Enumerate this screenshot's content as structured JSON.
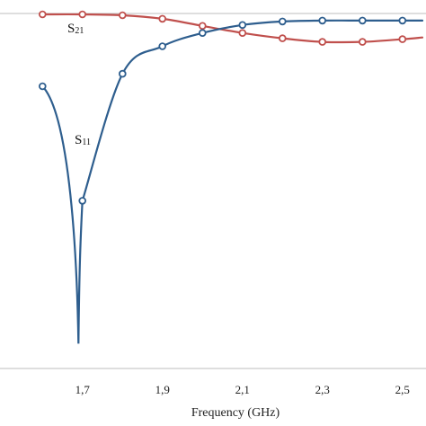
{
  "chart_data": {
    "type": "line",
    "xlabel": "Frequency (GHz)",
    "x_ticks": [
      "1,7",
      "1,9",
      "2,1",
      "2,3",
      "2,5"
    ],
    "x_tick_values": [
      1.7,
      1.9,
      2.1,
      2.3,
      2.5
    ],
    "xlim": [
      1.55,
      2.55
    ],
    "ylim": [
      -40,
      0
    ],
    "grid": false,
    "series": [
      {
        "name": "S21",
        "label_main": "S",
        "label_sub": "21",
        "color": "#c0504d",
        "x": [
          1.6,
          1.7,
          1.8,
          1.9,
          2.0,
          2.1,
          2.2,
          2.3,
          2.4,
          2.5,
          2.55
        ],
        "y": [
          -0.1,
          -0.1,
          -0.2,
          -0.6,
          -1.4,
          -2.2,
          -2.8,
          -3.2,
          -3.2,
          -2.9,
          -2.7
        ]
      },
      {
        "name": "S11",
        "label_main": "S",
        "label_sub": "11",
        "color": "#2e5e8e",
        "x": [
          1.6,
          1.7,
          1.8,
          1.9,
          2.0,
          2.1,
          2.2,
          2.3,
          2.4,
          2.5,
          2.55
        ],
        "y": [
          -8.2,
          -21.1,
          -6.8,
          -3.7,
          -2.2,
          -1.3,
          -0.9,
          -0.8,
          -0.8,
          -0.8,
          -0.8
        ],
        "dip": {
          "x": 1.69,
          "y": -37.2
        }
      }
    ]
  }
}
